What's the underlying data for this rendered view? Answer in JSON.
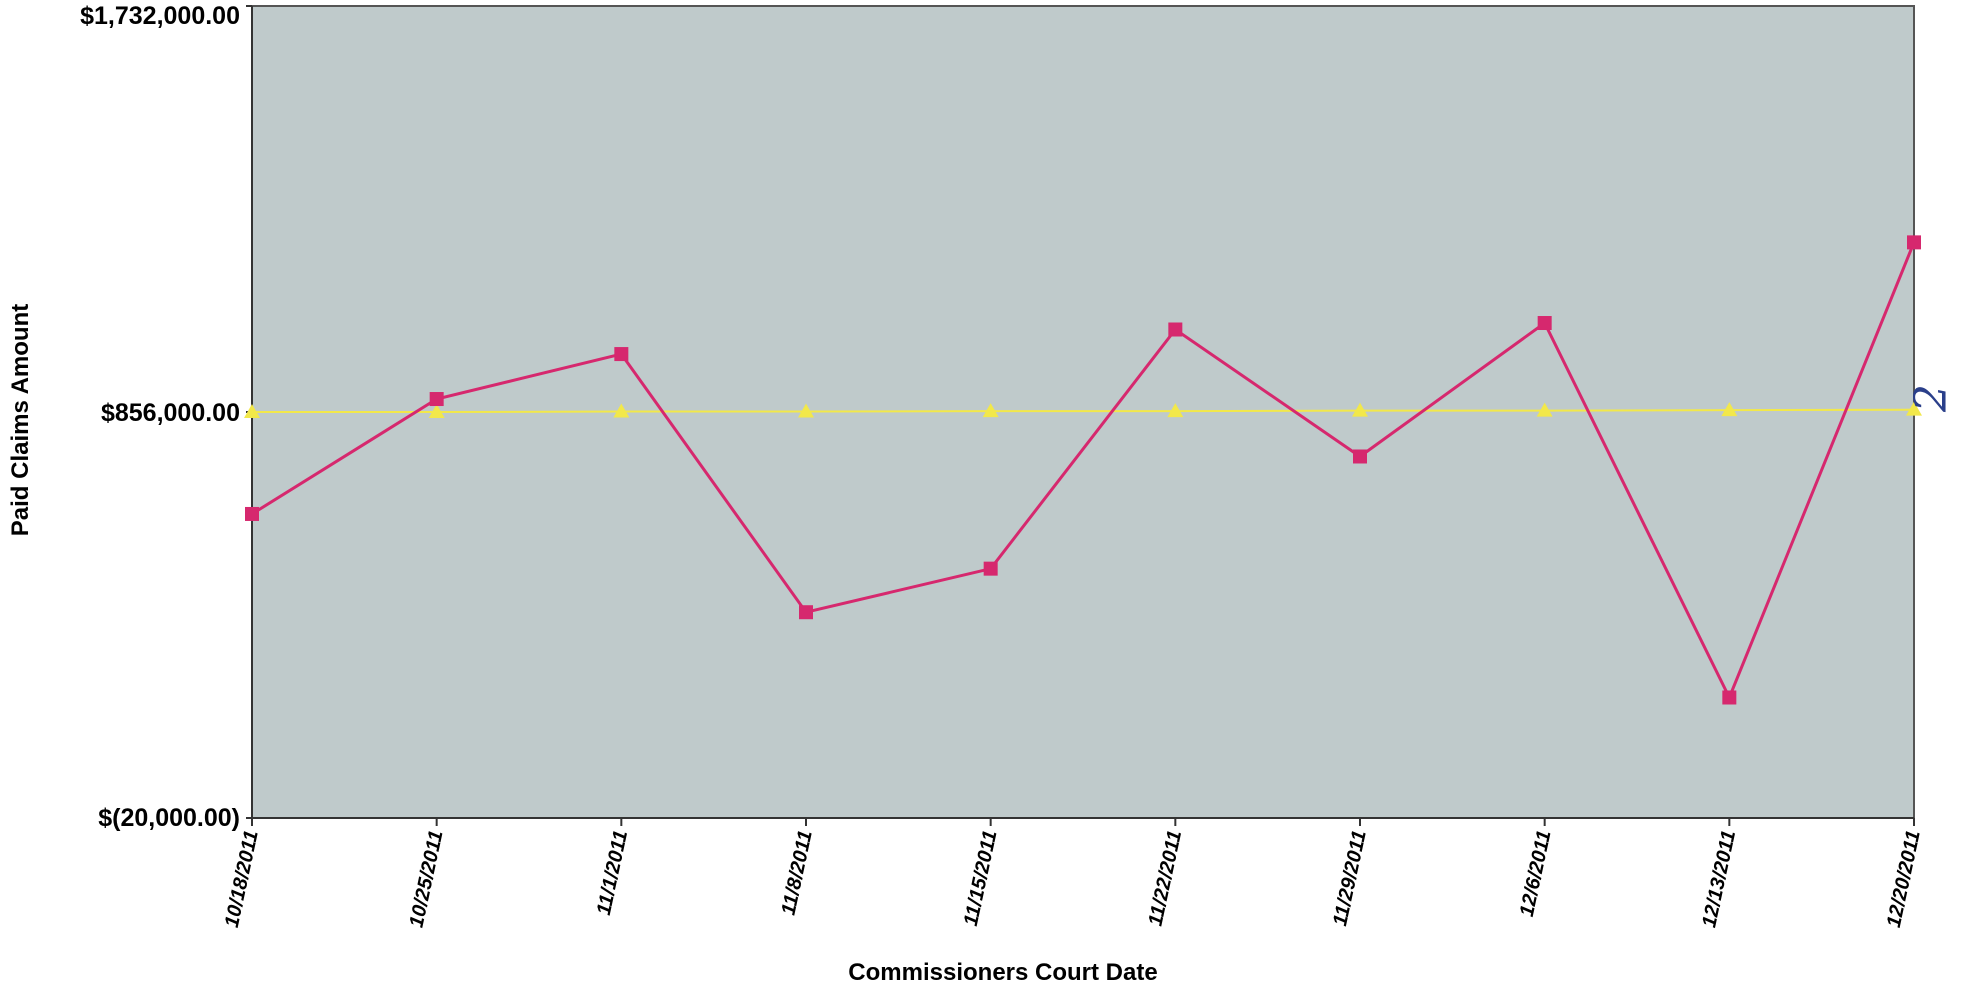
{
  "chart_data": {
    "type": "line",
    "title": "",
    "xlabel": "Commissioners Court Date",
    "ylabel": "Paid Claims Amount",
    "categories": [
      "10/18/2011",
      "10/25/2011",
      "11/1/2011",
      "11/8/2011",
      "11/15/2011",
      "11/22/2011",
      "11/29/2011",
      "12/6/2011",
      "12/13/2011",
      "12/20/2011"
    ],
    "ylim": [
      -20000,
      1732000
    ],
    "yticks": [
      -20000,
      856000,
      1732000
    ],
    "ytick_labels": [
      "$(20,000.00)",
      "$856,000.00",
      "$1,732,000.00"
    ],
    "grid": false,
    "series": [
      {
        "name": "",
        "color": "#d6286e",
        "marker": "square",
        "values": [
          636000,
          884000,
          981000,
          424000,
          518000,
          1034000,
          760000,
          1048000,
          240000,
          1222000
        ]
      },
      {
        "name": "",
        "color": "#f2e84a",
        "marker": "triangle",
        "values": [
          856000,
          856000,
          857000,
          857000,
          858000,
          858000,
          859000,
          859000,
          860000,
          861000
        ]
      }
    ],
    "plot_background": "#bfcacb",
    "annotation": "2"
  }
}
